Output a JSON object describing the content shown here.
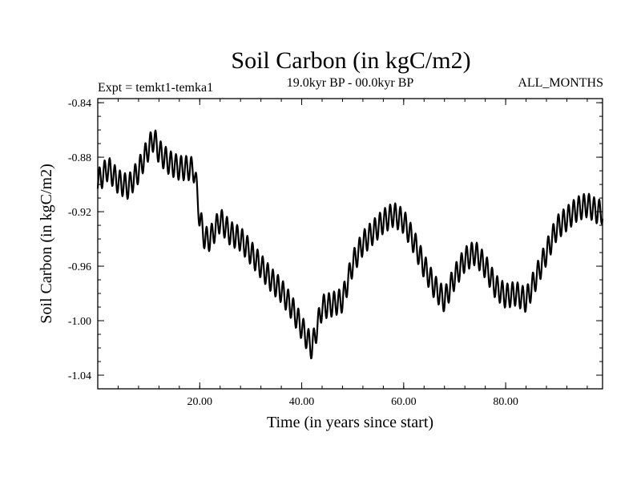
{
  "chart_data": {
    "type": "line",
    "title": "Soil Carbon (in kgC/m2)",
    "subtitle_left": "Expt = temkt1-temka1",
    "subtitle_center": "19.0kyr BP - 00.0kyr BP",
    "subtitle_right": "ALL_MONTHS",
    "xlabel": "Time (in years since start)",
    "ylabel": "Soil Carbon (in kgC/m2)",
    "xlim": [
      0,
      99
    ],
    "ylim": [
      -1.05,
      -0.837
    ],
    "x_ticks": [
      20,
      40,
      60,
      80
    ],
    "x_tick_labels": [
      "20.00",
      "40.00",
      "60.00",
      "80.00"
    ],
    "y_ticks": [
      -0.84,
      -0.88,
      -0.92,
      -0.96,
      -1.0,
      -1.04
    ],
    "y_tick_labels": [
      "-0.84",
      "-0.88",
      "-0.92",
      "-0.96",
      "-1.00",
      "-1.04"
    ],
    "seasonal_amplitude": 0.009,
    "series": [
      {
        "name": "Soil Carbon",
        "x": [
          0,
          2,
          4,
          6,
          8,
          10,
          11,
          12,
          14,
          16,
          18,
          19,
          20,
          21,
          22,
          24,
          26,
          28,
          30,
          32,
          34,
          36,
          38,
          40,
          42,
          44,
          46,
          48,
          50,
          52,
          54,
          56,
          58,
          60,
          62,
          64,
          66,
          68,
          70,
          72,
          74,
          76,
          78,
          80,
          82,
          84,
          86,
          88,
          90,
          92,
          94,
          96,
          98,
          99
        ],
        "values": [
          -0.898,
          -0.888,
          -0.898,
          -0.902,
          -0.89,
          -0.873,
          -0.866,
          -0.876,
          -0.884,
          -0.888,
          -0.888,
          -0.89,
          -0.925,
          -0.94,
          -0.94,
          -0.926,
          -0.936,
          -0.94,
          -0.95,
          -0.96,
          -0.97,
          -0.978,
          -0.99,
          -1.005,
          -1.02,
          -0.99,
          -0.988,
          -0.985,
          -0.958,
          -0.943,
          -0.935,
          -0.927,
          -0.922,
          -0.927,
          -0.942,
          -0.96,
          -0.975,
          -0.985,
          -0.968,
          -0.955,
          -0.95,
          -0.96,
          -0.975,
          -0.982,
          -0.98,
          -0.985,
          -0.968,
          -0.95,
          -0.932,
          -0.925,
          -0.918,
          -0.915,
          -0.92,
          -0.92
        ]
      }
    ]
  }
}
